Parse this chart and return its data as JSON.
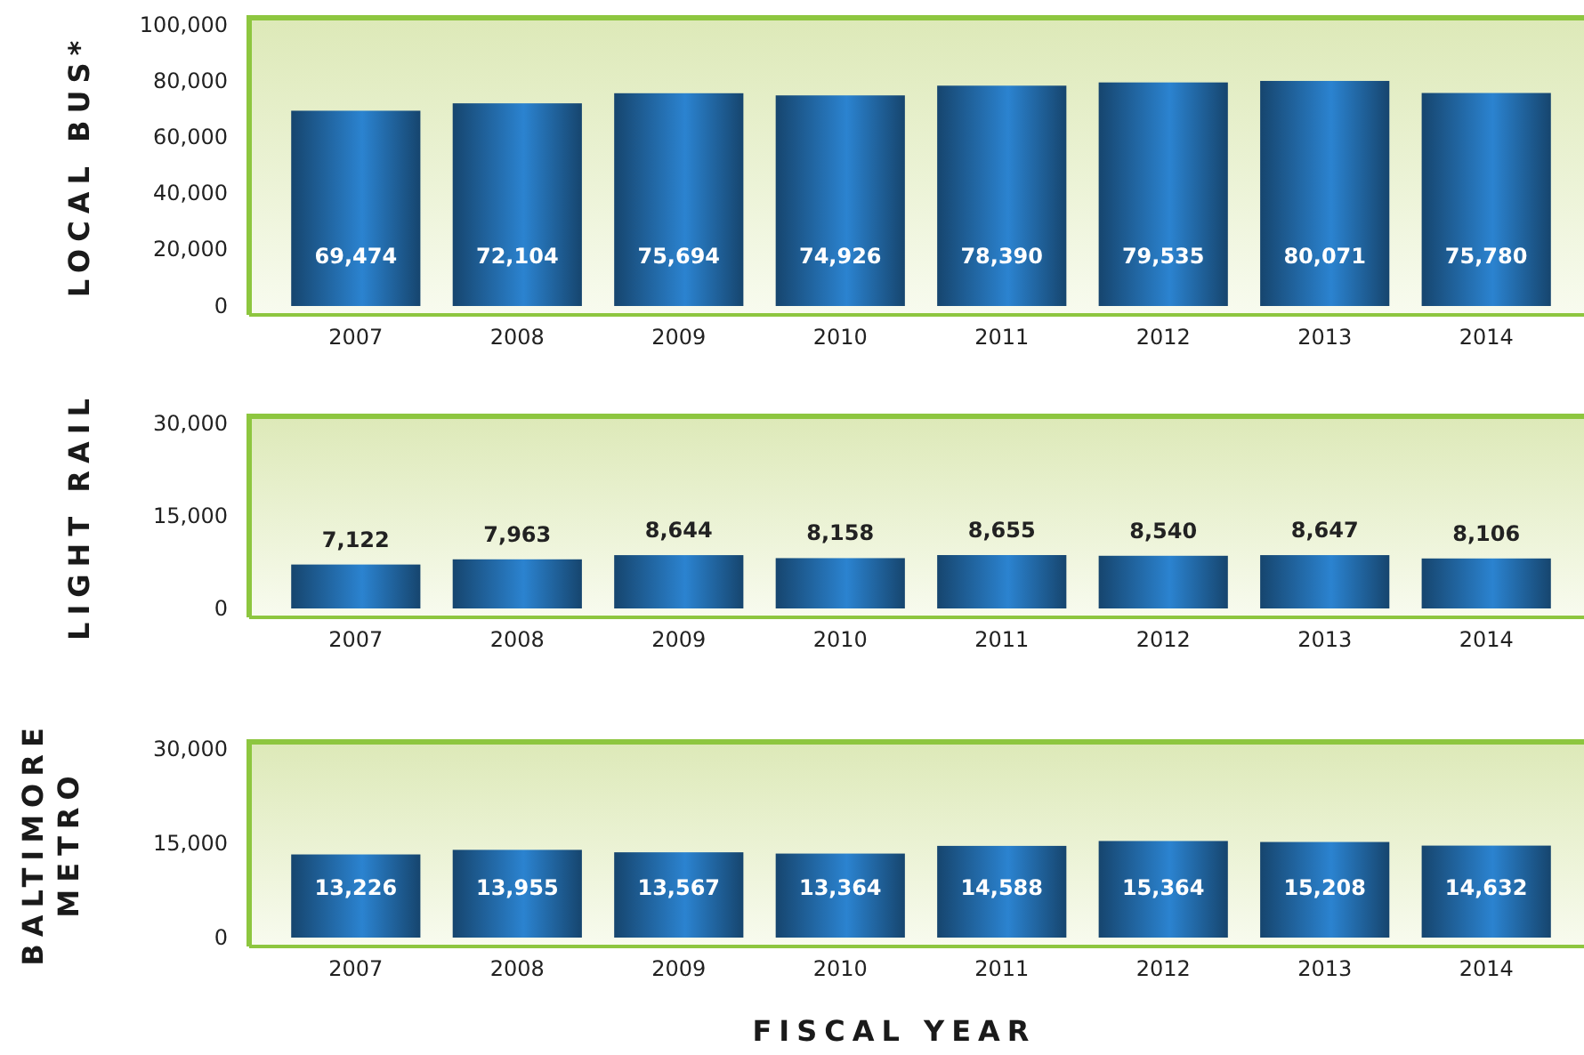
{
  "chart_data": [
    {
      "type": "bar",
      "ylabel": "LOCAL BUS*",
      "categories": [
        "2007",
        "2008",
        "2009",
        "2010",
        "2011",
        "2012",
        "2013",
        "2014"
      ],
      "values": [
        69474,
        72104,
        75694,
        74926,
        78390,
        79535,
        80071,
        75780
      ],
      "value_labels": [
        "69,474",
        "72,104",
        "75,694",
        "74,926",
        "78,390",
        "79,535",
        "80,071",
        "75,780"
      ],
      "color": "#1f5f97",
      "ylim": [
        0,
        100000
      ],
      "yticks": [
        {
          "value": 0,
          "label": "0"
        },
        {
          "value": 20000,
          "label": "20,000"
        },
        {
          "value": 40000,
          "label": "40,000"
        },
        {
          "value": 60000,
          "label": "60,000"
        },
        {
          "value": 80000,
          "label": "80,000"
        },
        {
          "value": 100000,
          "label": "100,000"
        }
      ]
    },
    {
      "type": "bar",
      "ylabel": "LIGHT RAIL",
      "categories": [
        "2007",
        "2008",
        "2009",
        "2010",
        "2011",
        "2012",
        "2013",
        "2014"
      ],
      "values": [
        7122,
        7963,
        8644,
        8158,
        8655,
        8540,
        8647,
        8106
      ],
      "value_labels": [
        "7,122",
        "7,963",
        "8,644",
        "8,158",
        "8,655",
        "8,540",
        "8,647",
        "8,106"
      ],
      "color": "#1f5f97",
      "ylim": [
        0,
        30000
      ],
      "yticks": [
        {
          "value": 0,
          "label": "0"
        },
        {
          "value": 15000,
          "label": "15,000"
        },
        {
          "value": 30000,
          "label": "30,000"
        }
      ]
    },
    {
      "type": "bar",
      "ylabel": "BALTIMORE METRO",
      "xlabel": "FISCAL YEAR",
      "categories": [
        "2007",
        "2008",
        "2009",
        "2010",
        "2011",
        "2012",
        "2013",
        "2014"
      ],
      "values": [
        13226,
        13955,
        13567,
        13364,
        14588,
        15364,
        15208,
        14632
      ],
      "value_labels": [
        "13,226",
        "13,955",
        "13,567",
        "13,364",
        "14,588",
        "15,364",
        "15,208",
        "14,632"
      ],
      "color": "#1f5f97",
      "ylim": [
        0,
        30000
      ],
      "yticks": [
        {
          "value": 0,
          "label": "0"
        },
        {
          "value": 15000,
          "label": "15,000"
        },
        {
          "value": 30000,
          "label": "30,000"
        }
      ]
    }
  ]
}
